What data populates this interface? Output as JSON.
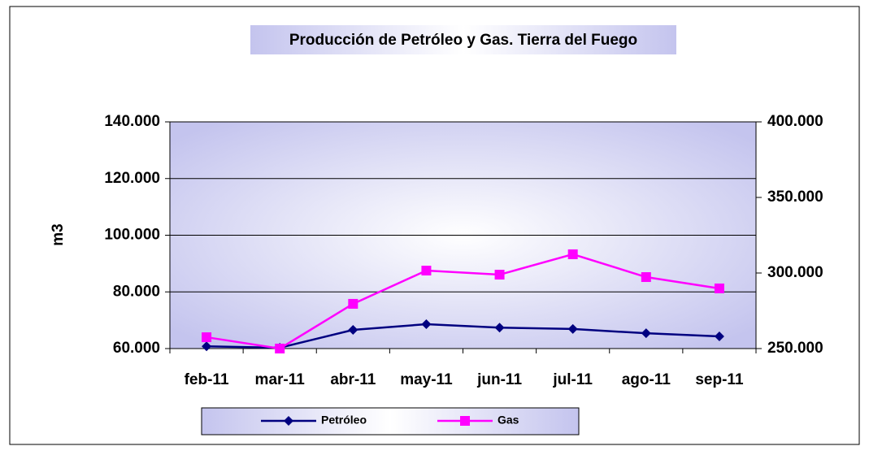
{
  "chart_data": {
    "type": "line",
    "title": "Producción de Petróleo y Gas. Tierra del Fuego",
    "ylabel": "m3",
    "categories": [
      "feb-11",
      "mar-11",
      "abr-11",
      "may-11",
      "jun-11",
      "jul-11",
      "ago-11",
      "sep-11"
    ],
    "series": [
      {
        "name": "Petróleo",
        "color": "#000080",
        "values": [
          60800,
          60300,
          66600,
          68600,
          67400,
          66900,
          65400,
          64300
        ]
      },
      {
        "name": "Gas",
        "color": "#ff00ff",
        "axis": "y2",
        "values": [
          257500,
          250000,
          279600,
          301600,
          298900,
          312400,
          297300,
          289800
        ]
      }
    ],
    "ylim": [
      60000,
      140000
    ],
    "yticks": [
      {
        "value": 60000,
        "label": "60.000"
      },
      {
        "value": 80000,
        "label": "80.000"
      },
      {
        "value": 100000,
        "label": "100.000"
      },
      {
        "value": 120000,
        "label": "120.000"
      },
      {
        "value": 140000,
        "label": "140.000"
      }
    ],
    "y2lim": [
      250000,
      400000
    ],
    "y2ticks": [
      {
        "value": 250000,
        "label": "250.000"
      },
      {
        "value": 300000,
        "label": "300.000"
      },
      {
        "value": 350000,
        "label": "350.000"
      },
      {
        "value": 400000,
        "label": "400.000"
      }
    ],
    "grid": true,
    "legend": "bottom"
  }
}
